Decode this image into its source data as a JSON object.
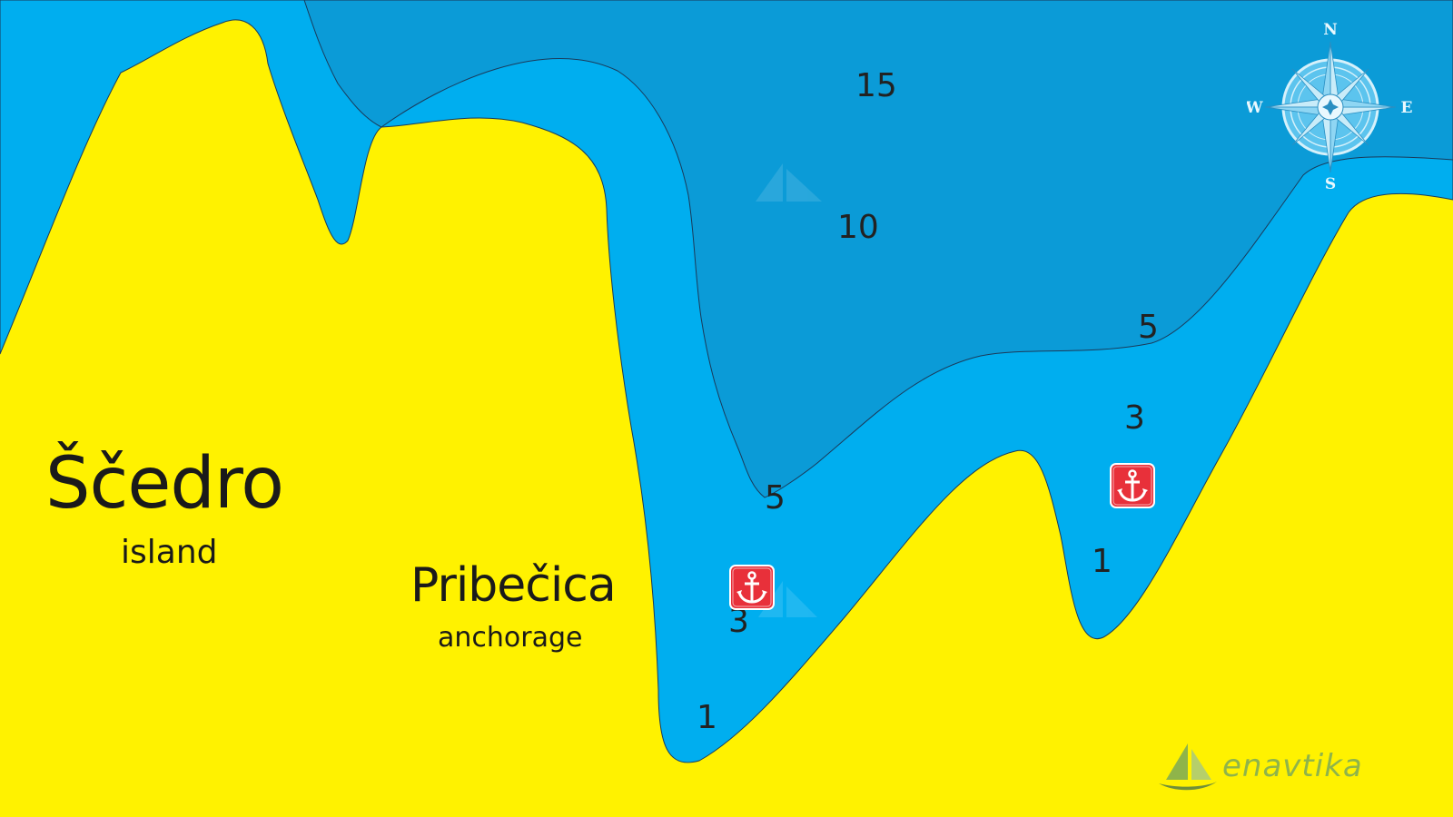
{
  "map": {
    "colors": {
      "land": "#fff200",
      "shallow_water": "#00aeef",
      "deep_water": "#0b9bd7",
      "anchor_marker": "#e8303a",
      "compass": "#b8e6f7"
    },
    "island": {
      "name": "Ščedro",
      "subtitle": "island"
    },
    "anchorage": {
      "name": "Pribečica",
      "subtitle": "anchorage"
    },
    "depth_labels": [
      "15",
      "10",
      "5",
      "3",
      "5",
      "3",
      "1",
      "1"
    ],
    "anchor_markers": [
      {
        "icon": "anchor-icon"
      },
      {
        "icon": "anchor-icon"
      }
    ],
    "compass": {
      "north": "N",
      "south": "S",
      "east": "E",
      "west": "W"
    },
    "logo": {
      "text": "enavtika"
    }
  }
}
